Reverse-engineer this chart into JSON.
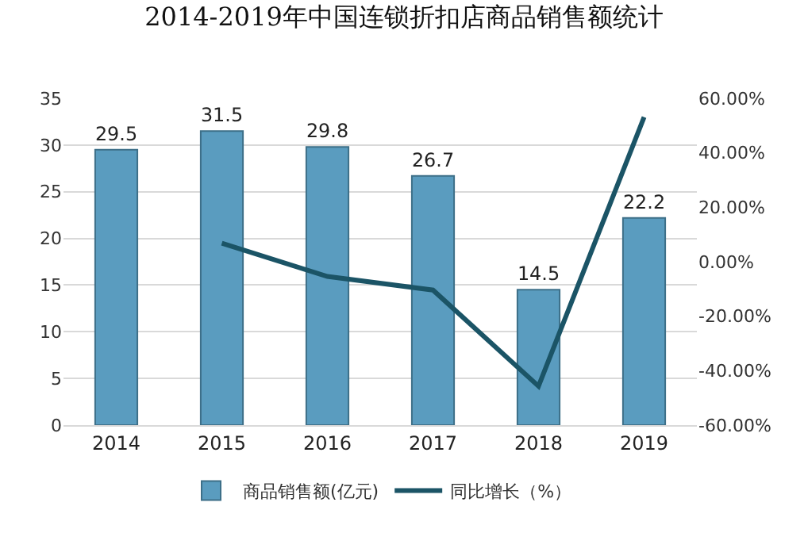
{
  "chart_data": {
    "type": "bar",
    "title": "2014-2019年中国连锁折扣店商品销售额统计",
    "categories": [
      "2014",
      "2015",
      "2016",
      "2017",
      "2018",
      "2019"
    ],
    "series": [
      {
        "name": "商品销售额(亿元)",
        "color": "#5a9cbf",
        "values": [
          29.5,
          31.5,
          29.8,
          26.7,
          14.5,
          22.2
        ],
        "value_labels": [
          "29.5",
          "31.5",
          "29.8",
          "26.7",
          "14.5",
          "22.2"
        ]
      },
      {
        "name": "同比增长（%）",
        "type": "line",
        "axis": "y2",
        "color": "#1b5466",
        "values": [
          null,
          6.8,
          -5.4,
          -10.4,
          -45.7,
          53.1
        ]
      }
    ],
    "ylim": [
      0,
      35
    ],
    "yticks": [
      0,
      5,
      10,
      15,
      20,
      25,
      30,
      35
    ],
    "y2lim": [
      -60,
      60
    ],
    "y2ticks": [
      {
        "value": -60,
        "label": "-60.00%"
      },
      {
        "value": -40,
        "label": "-40.00%"
      },
      {
        "value": -20,
        "label": "-20.00%"
      },
      {
        "value": 0,
        "label": "0.00%"
      },
      {
        "value": 20,
        "label": "20.00%"
      },
      {
        "value": 40,
        "label": "40.00%"
      },
      {
        "value": 60,
        "label": "60.00%"
      }
    ],
    "grid": "y",
    "legend": "bottom",
    "marker": "none"
  }
}
